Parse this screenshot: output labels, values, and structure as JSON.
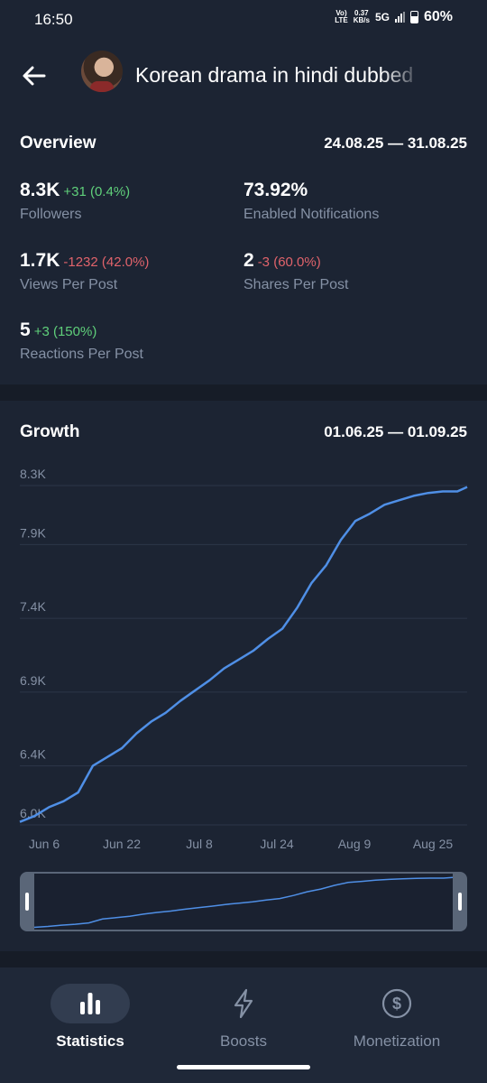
{
  "status_bar": {
    "time": "16:50",
    "volte": "Vo)\nLTE",
    "speed": "0.37\nKB/s",
    "network": "5G",
    "battery": "60%"
  },
  "header": {
    "title": "Korean drama in hindi dubbed"
  },
  "overview": {
    "title": "Overview",
    "range": "24.08.25 — 31.08.25",
    "stats": [
      {
        "value": "8.3K",
        "delta": "+31 (0.4%)",
        "delta_type": "positive",
        "label": "Followers"
      },
      {
        "value": "73.92%",
        "delta": "",
        "delta_type": "none",
        "label": "Enabled Notifications"
      },
      {
        "value": "1.7K",
        "delta": "-1232 (42.0%)",
        "delta_type": "negative",
        "label": "Views Per Post"
      },
      {
        "value": "2",
        "delta": "-3 (60.0%)",
        "delta_type": "negative",
        "label": "Shares Per Post"
      },
      {
        "value": "5",
        "delta": "+3 (150%)",
        "delta_type": "positive",
        "label": "Reactions Per Post"
      }
    ]
  },
  "growth": {
    "title": "Growth",
    "range": "01.06.25 — 01.09.25"
  },
  "chart_data": {
    "type": "line",
    "title": "Growth",
    "y_ticks": [
      "8.3K",
      "7.9K",
      "7.4K",
      "6.9K",
      "6.4K",
      "6.0K"
    ],
    "y_tick_values": [
      8300,
      7900,
      7400,
      6900,
      6400,
      6000
    ],
    "x_ticks": [
      "Jun 6",
      "Jun 22",
      "Jul 8",
      "Jul 24",
      "Aug 9",
      "Aug 25"
    ],
    "ylim": [
      6000,
      8300
    ],
    "grid": true,
    "color": "#4f8fe6",
    "series": [
      {
        "x": [
          0,
          3,
          6,
          9,
          12,
          15,
          18,
          21,
          24,
          27,
          30,
          33,
          36,
          39,
          42,
          45,
          48,
          51,
          54,
          57,
          60,
          63,
          66,
          69,
          72,
          75,
          78,
          81,
          84,
          87,
          90,
          92
        ],
        "values": [
          6020,
          6060,
          6120,
          6160,
          6220,
          6400,
          6460,
          6520,
          6620,
          6700,
          6760,
          6840,
          6910,
          6980,
          7060,
          7120,
          7180,
          7260,
          7330,
          7470,
          7640,
          7760,
          7930,
          8060,
          8110,
          8170,
          8200,
          8230,
          8250,
          8260,
          8260,
          8290
        ]
      }
    ]
  },
  "navbar": {
    "items": [
      {
        "label": "Statistics",
        "icon": "bar-chart-icon",
        "active": true
      },
      {
        "label": "Boosts",
        "icon": "lightning-icon",
        "active": false
      },
      {
        "label": "Monetization",
        "icon": "dollar-icon",
        "active": false
      }
    ]
  }
}
